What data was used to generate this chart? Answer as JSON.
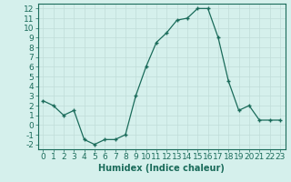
{
  "x": [
    0,
    1,
    2,
    3,
    4,
    5,
    6,
    7,
    8,
    9,
    10,
    11,
    12,
    13,
    14,
    15,
    16,
    17,
    18,
    19,
    20,
    21,
    22,
    23
  ],
  "y": [
    2.5,
    2.0,
    1.0,
    1.5,
    -1.5,
    -2.0,
    -1.5,
    -1.5,
    -1.0,
    3.0,
    6.0,
    8.5,
    9.5,
    10.8,
    11.0,
    12.0,
    12.0,
    9.0,
    4.5,
    1.5,
    2.0,
    0.5,
    0.5,
    0.5
  ],
  "xlabel": "Humidex (Indice chaleur)",
  "ylim": [
    -2.5,
    12.5
  ],
  "xlim": [
    -0.5,
    23.5
  ],
  "yticks": [
    -2,
    -1,
    0,
    1,
    2,
    3,
    4,
    5,
    6,
    7,
    8,
    9,
    10,
    11,
    12
  ],
  "xticks": [
    0,
    1,
    2,
    3,
    4,
    5,
    6,
    7,
    8,
    9,
    10,
    11,
    12,
    13,
    14,
    15,
    16,
    17,
    18,
    19,
    20,
    21,
    22,
    23
  ],
  "line_color": "#1a6b5a",
  "marker_color": "#1a6b5a",
  "bg_color": "#d5f0ec",
  "grid_color": "#c0ddd8",
  "xlabel_fontsize": 7,
  "tick_fontsize": 6.5
}
